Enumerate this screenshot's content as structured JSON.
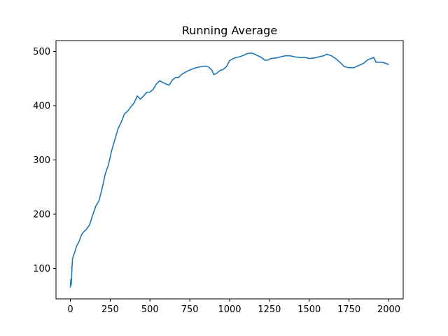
{
  "chart_data": {
    "type": "line",
    "title": "Running Average",
    "xlabel": "",
    "ylabel": "",
    "xlim": [
      -90,
      2090
    ],
    "ylim": [
      44,
      520
    ],
    "xticks": [
      0,
      250,
      500,
      750,
      1000,
      1250,
      1500,
      1750,
      2000
    ],
    "yticks": [
      100,
      200,
      300,
      400,
      500
    ],
    "grid": false,
    "legend": "none",
    "series": [
      {
        "color": "#1f77b4",
        "points": [
          [
            0,
            65
          ],
          [
            3,
            80
          ],
          [
            6,
            70
          ],
          [
            10,
            100
          ],
          [
            14,
            118
          ],
          [
            20,
            124
          ],
          [
            30,
            132
          ],
          [
            40,
            142
          ],
          [
            55,
            150
          ],
          [
            70,
            162
          ],
          [
            85,
            168
          ],
          [
            100,
            172
          ],
          [
            120,
            180
          ],
          [
            140,
            198
          ],
          [
            160,
            215
          ],
          [
            180,
            225
          ],
          [
            200,
            248
          ],
          [
            220,
            275
          ],
          [
            240,
            292
          ],
          [
            260,
            318
          ],
          [
            280,
            338
          ],
          [
            300,
            358
          ],
          [
            320,
            370
          ],
          [
            340,
            385
          ],
          [
            360,
            390
          ],
          [
            380,
            398
          ],
          [
            400,
            405
          ],
          [
            420,
            418
          ],
          [
            440,
            412
          ],
          [
            460,
            418
          ],
          [
            480,
            425
          ],
          [
            500,
            425
          ],
          [
            520,
            430
          ],
          [
            540,
            440
          ],
          [
            560,
            446
          ],
          [
            580,
            443
          ],
          [
            600,
            440
          ],
          [
            620,
            438
          ],
          [
            640,
            447
          ],
          [
            660,
            452
          ],
          [
            680,
            452
          ],
          [
            700,
            458
          ],
          [
            730,
            463
          ],
          [
            760,
            467
          ],
          [
            790,
            470
          ],
          [
            820,
            472
          ],
          [
            850,
            473
          ],
          [
            870,
            471
          ],
          [
            890,
            465
          ],
          [
            900,
            457
          ],
          [
            920,
            460
          ],
          [
            940,
            465
          ],
          [
            960,
            467
          ],
          [
            980,
            472
          ],
          [
            1000,
            483
          ],
          [
            1030,
            488
          ],
          [
            1060,
            490
          ],
          [
            1090,
            493
          ],
          [
            1110,
            496
          ],
          [
            1130,
            497
          ],
          [
            1150,
            496
          ],
          [
            1170,
            493
          ],
          [
            1200,
            489
          ],
          [
            1220,
            484
          ],
          [
            1240,
            484
          ],
          [
            1260,
            487
          ],
          [
            1290,
            488
          ],
          [
            1320,
            490
          ],
          [
            1350,
            492
          ],
          [
            1380,
            492
          ],
          [
            1410,
            490
          ],
          [
            1440,
            489
          ],
          [
            1470,
            489
          ],
          [
            1500,
            487
          ],
          [
            1530,
            488
          ],
          [
            1560,
            490
          ],
          [
            1590,
            492
          ],
          [
            1610,
            495
          ],
          [
            1640,
            492
          ],
          [
            1670,
            486
          ],
          [
            1700,
            478
          ],
          [
            1720,
            472
          ],
          [
            1750,
            470
          ],
          [
            1780,
            470
          ],
          [
            1810,
            474
          ],
          [
            1840,
            478
          ],
          [
            1870,
            485
          ],
          [
            1890,
            487
          ],
          [
            1905,
            489
          ],
          [
            1920,
            480
          ],
          [
            1940,
            480
          ],
          [
            1960,
            480
          ],
          [
            1980,
            478
          ],
          [
            2000,
            476
          ]
        ]
      }
    ]
  }
}
